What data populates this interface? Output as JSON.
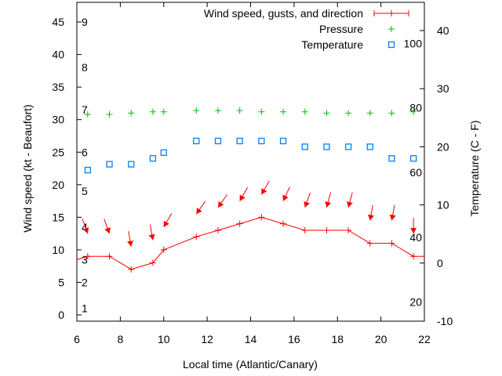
{
  "chart_data": {
    "type": "line",
    "xlabel": "Local time (Atlantic/Canary)",
    "ylabel": "Wind speed (kt - Beaufort)",
    "y2label": "Temperature (C - F)",
    "xlim": [
      6,
      22
    ],
    "ylim": [
      0,
      48
    ],
    "y2lim": [
      -10,
      44.5
    ],
    "xticks": [
      6,
      8,
      10,
      12,
      14,
      16,
      18,
      20,
      22
    ],
    "yticks": [
      0,
      5,
      10,
      15,
      20,
      25,
      30,
      35,
      40,
      45
    ],
    "y2ticks": [
      -10,
      0,
      10,
      20,
      30,
      40
    ],
    "beaufort_labels": [
      {
        "b": "1",
        "kt": 1
      },
      {
        "b": "2",
        "kt": 5
      },
      {
        "b": "3",
        "kt": 8.5
      },
      {
        "b": "4",
        "kt": 13.5
      },
      {
        "b": "5",
        "kt": 19
      },
      {
        "b": "6",
        "kt": 25
      },
      {
        "b": "7",
        "kt": 31.5
      },
      {
        "b": "8",
        "kt": 38
      },
      {
        "b": "9",
        "kt": 45
      }
    ],
    "fahrenheit_labels": [
      {
        "f": "20",
        "c": -6.7
      },
      {
        "f": "40",
        "c": 4.4
      },
      {
        "f": "60",
        "c": 15.6
      },
      {
        "f": "80",
        "c": 26.7
      },
      {
        "f": "100",
        "c": 37.8
      }
    ],
    "legend": {
      "placement": "top-right",
      "entries": [
        "Wind speed, gusts, and direction",
        "Pressure",
        "Temperature"
      ]
    },
    "x": [
      6.5,
      7.5,
      8.5,
      9.5,
      10,
      11.5,
      12.5,
      13.5,
      14.5,
      15.5,
      16.5,
      17.5,
      18.5,
      19.5,
      20.5,
      21.5
    ],
    "series": [
      {
        "name": "Wind speed, gusts, and direction",
        "color": "#ff0000",
        "line_start": 8.5,
        "values": [
          9,
          9,
          7,
          8,
          10,
          12,
          13,
          14,
          15,
          14,
          13,
          13,
          13,
          11,
          11,
          9
        ],
        "gusts": [
          12.5,
          12.5,
          10.5,
          11.5,
          13.5,
          15.5,
          16.5,
          17.5,
          18.5,
          17.5,
          16.5,
          16.5,
          16.5,
          14.5,
          14.5,
          12.5
        ],
        "direction_from_deg": [
          340,
          340,
          350,
          350,
          30,
          35,
          35,
          30,
          30,
          25,
          20,
          15,
          15,
          10,
          10,
          0
        ]
      },
      {
        "name": "Pressure",
        "color": "#00c000",
        "axis": "y",
        "values": [
          30.8,
          30.8,
          31,
          31.2,
          31.2,
          31.4,
          31.4,
          31.4,
          31.2,
          31.2,
          31.2,
          31,
          31,
          31,
          31,
          31.2
        ]
      },
      {
        "name": "Temperature",
        "color": "#0080ff",
        "axis": "y2",
        "values": [
          16,
          17,
          17,
          18,
          19,
          21,
          21,
          21,
          21,
          21,
          20,
          20,
          20,
          20,
          18,
          18
        ]
      }
    ]
  }
}
